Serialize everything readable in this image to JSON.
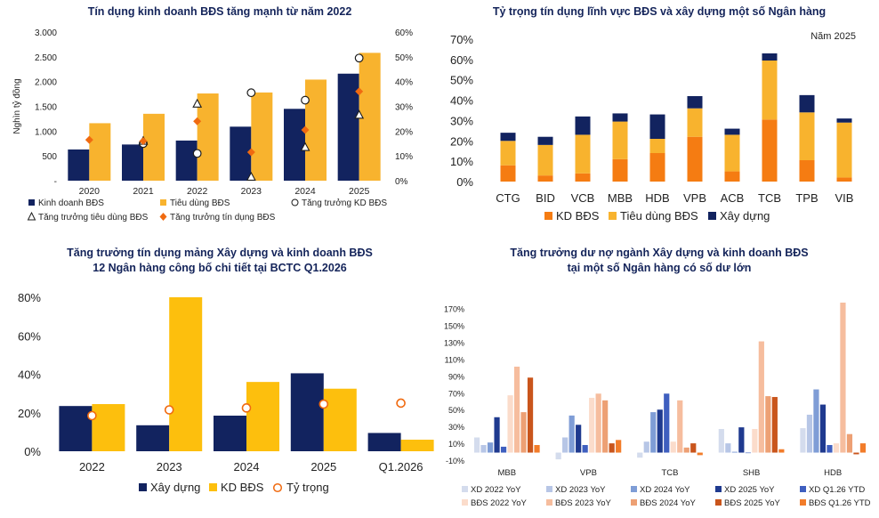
{
  "colors": {
    "navy": "#12235f",
    "orange": "#f8b32e",
    "yellow": "#fdbf0d",
    "kd": "#f57c12",
    "marker_orange": "#f06a10",
    "pale": [
      "#d4dced",
      "#b7c6e6",
      "#7f9dd6",
      "#1f3a8f",
      "#3f5fbf",
      "#fbdccb",
      "#f6bd9e",
      "#eda074",
      "#c9551c",
      "#f27c2a"
    ]
  },
  "chart_data": [
    {
      "type": "bar",
      "title": "Tín dụng kinh doanh BĐS tăng mạnh từ năm 2022",
      "ylabel": "Nghìn tỷ đồng",
      "categories": [
        "2020",
        "2021",
        "2022",
        "2023",
        "2024",
        "2025"
      ],
      "yticks": [
        "-",
        "500",
        "1.000",
        "1.500",
        "2.000",
        "2.500",
        "3.000"
      ],
      "y2ticks": [
        "0%",
        "10%",
        "20%",
        "30%",
        "40%",
        "50%",
        "60%"
      ],
      "ylim": [
        0,
        3000
      ],
      "y2lim": [
        0,
        60
      ],
      "series": [
        {
          "name": "Kinh doanh BĐS",
          "kind": "bar",
          "values": [
            630,
            730,
            810,
            1090,
            1450,
            2160
          ]
        },
        {
          "name": "Tiêu dùng BĐS",
          "kind": "bar",
          "values": [
            1160,
            1350,
            1760,
            1780,
            2040,
            2580
          ]
        },
        {
          "name": "Tăng trưởng KD BĐS",
          "kind": "marker",
          "marker": "circle",
          "values": [
            null,
            15,
            11,
            35.5,
            32.5,
            49.5
          ]
        },
        {
          "name": "Tăng trưởng tiêu dùng BĐS",
          "kind": "marker",
          "marker": "triangle",
          "values": [
            null,
            16,
            31,
            1.5,
            13.5,
            26.5
          ]
        },
        {
          "name": "Tăng trưởng tín dụng BĐS",
          "kind": "marker",
          "marker": "diamond",
          "values": [
            16.5,
            16,
            24,
            11.5,
            20.5,
            36
          ]
        }
      ]
    },
    {
      "type": "bar",
      "stacked": true,
      "title": "Tỷ trọng tín dụng lĩnh vực BĐS và xây dựng một số Ngân hàng",
      "annotation": "Năm 2025",
      "categories": [
        "CTG",
        "BID",
        "VCB",
        "MBB",
        "HDB",
        "VPB",
        "ACB",
        "TCB",
        "TPB",
        "VIB"
      ],
      "yticks": [
        "0%",
        "10%",
        "20%",
        "30%",
        "40%",
        "50%",
        "60%",
        "70%"
      ],
      "ylim": [
        0,
        70
      ],
      "series": [
        {
          "name": "KD BĐS",
          "values": [
            8,
            3,
            4,
            11,
            14,
            22,
            5,
            30.5,
            10.5,
            2
          ]
        },
        {
          "name": "Tiêu dùng BĐS",
          "values": [
            12,
            15,
            19,
            18.5,
            7,
            14,
            18,
            29,
            23.5,
            27
          ]
        },
        {
          "name": "Xây dựng",
          "values": [
            4,
            4,
            9,
            4,
            12,
            6,
            3,
            3.5,
            8.5,
            2
          ]
        }
      ]
    },
    {
      "type": "bar",
      "title": [
        "Tăng trưởng tín dụng mảng Xây dựng và kinh doanh BĐS",
        "12 Ngân hàng công bố chi tiết tại BCTC Q1.2026"
      ],
      "categories": [
        "2022",
        "2023",
        "2024",
        "2025",
        "Q1.2026"
      ],
      "yticks": [
        "0%",
        "20%",
        "40%",
        "60%",
        "80%"
      ],
      "ylim": [
        0,
        80
      ],
      "series": [
        {
          "name": "Xây dựng",
          "kind": "bar",
          "values": [
            23.5,
            13.5,
            18.5,
            40.5,
            9.5
          ]
        },
        {
          "name": "KD BĐS",
          "kind": "bar",
          "values": [
            24.5,
            80,
            36,
            32.5,
            6
          ]
        },
        {
          "name": "Tỷ trọng",
          "kind": "marker",
          "values": [
            18.5,
            21.5,
            22.5,
            24.5,
            25
          ]
        }
      ]
    },
    {
      "type": "bar",
      "title": [
        "Tăng trưởng dư nợ ngành Xây dựng và kinh doanh BĐS",
        "tại một số Ngân hàng có số dư lớn"
      ],
      "categories": [
        "MBB",
        "VPB",
        "TCB",
        "SHB",
        "HDB"
      ],
      "yticks": [
        "-10%",
        "10%",
        "30%",
        "50%",
        "70%",
        "90%",
        "110%",
        "130%",
        "150%",
        "170%"
      ],
      "ylim": [
        -10,
        178
      ],
      "series": [
        {
          "name": "XD 2022 YoY",
          "values": [
            18,
            -8,
            -6,
            28,
            29
          ]
        },
        {
          "name": "XD 2023 YoY",
          "values": [
            9,
            18,
            13,
            11,
            45
          ]
        },
        {
          "name": "XD 2024 YoY",
          "values": [
            12,
            44,
            48,
            1,
            75
          ]
        },
        {
          "name": "XD 2025 YoY",
          "values": [
            42,
            33,
            51,
            30,
            57
          ]
        },
        {
          "name": "XD Q1.26 YTD",
          "values": [
            7,
            9,
            70,
            0,
            9
          ]
        },
        {
          "name": "BĐS 2022 YoY",
          "values": [
            68,
            65,
            13,
            28,
            11
          ]
        },
        {
          "name": "BĐS 2023 YoY",
          "values": [
            102,
            70,
            62,
            132,
            178
          ]
        },
        {
          "name": "BĐS 2024 YoY",
          "values": [
            48,
            62,
            6,
            67,
            22
          ]
        },
        {
          "name": "BĐS 2025 YoY",
          "values": [
            89,
            11,
            11,
            66,
            -2
          ]
        },
        {
          "name": "BĐS Q1.26 YTD",
          "values": [
            9,
            15,
            -3,
            4,
            11
          ]
        }
      ]
    }
  ]
}
